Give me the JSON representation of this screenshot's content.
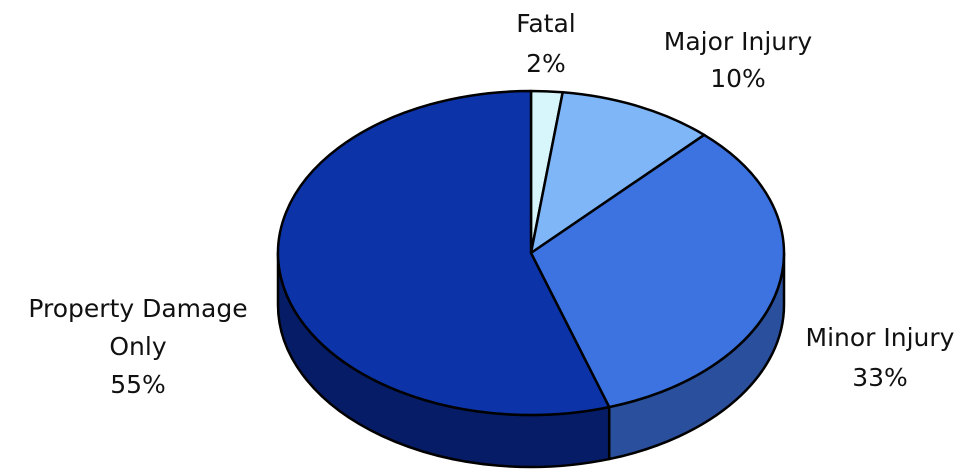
{
  "chart_data": {
    "type": "pie",
    "style": "3d",
    "title": "",
    "slices": [
      {
        "label_lines": [
          "Fatal"
        ],
        "percent_label": "2%",
        "value": 2,
        "color": "#d6f6fb",
        "side_color": "#a8d4dc"
      },
      {
        "label_lines": [
          "Major Injury"
        ],
        "percent_label": "10%",
        "value": 10,
        "color": "#7eb6f8",
        "side_color": "#4f86c6"
      },
      {
        "label_lines": [
          "Minor Injury"
        ],
        "percent_label": "33%",
        "value": 33,
        "color": "#3d73e0",
        "side_color": "#2a4f9c"
      },
      {
        "label_lines": [
          "Property Damage",
          "Only"
        ],
        "percent_label": "55%",
        "value": 55,
        "color": "#0c33a8",
        "side_color": "#061c66"
      }
    ],
    "start_position": "12 o'clock",
    "direction": "clockwise",
    "legend": "none"
  }
}
